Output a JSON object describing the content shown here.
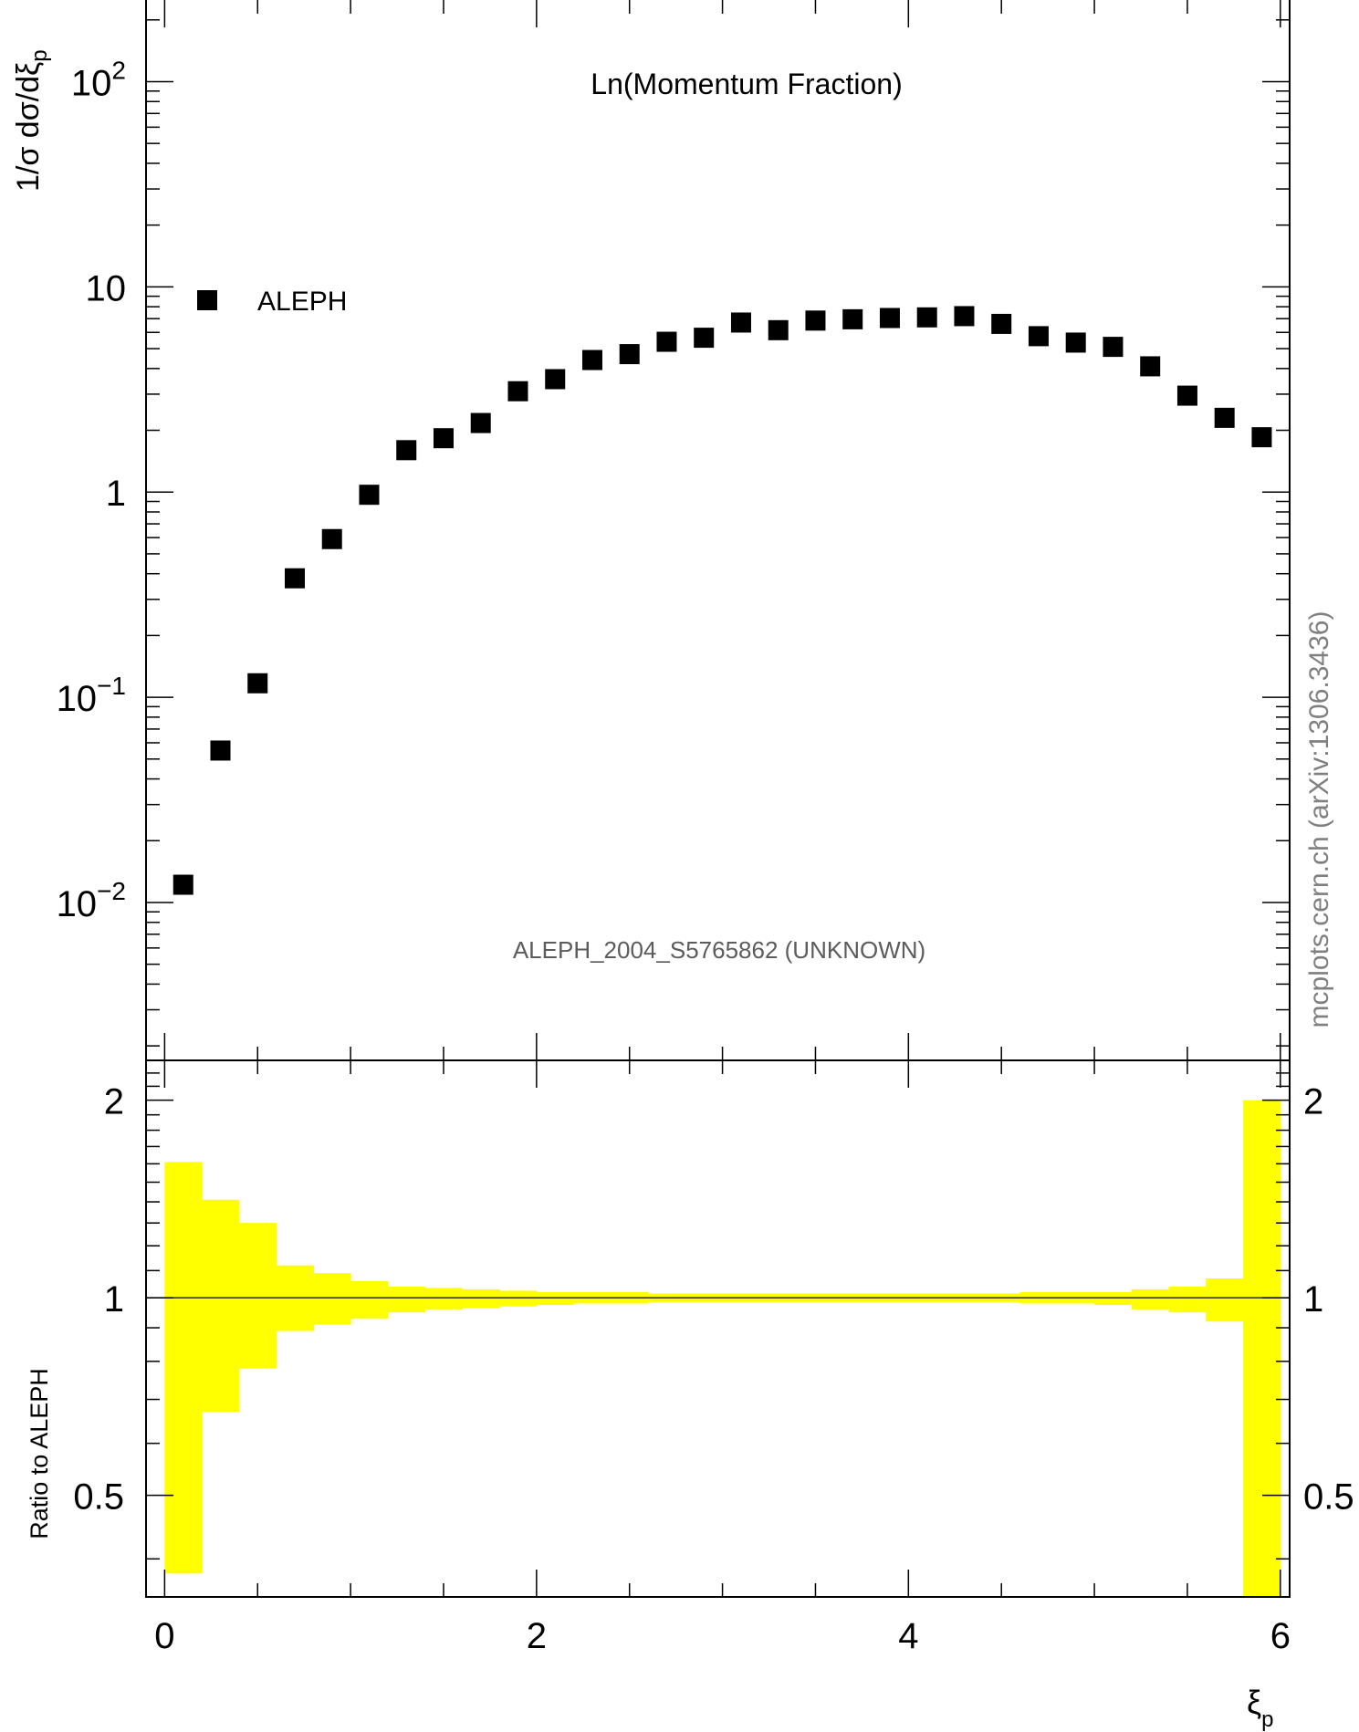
{
  "chart_data": [
    {
      "panel": "main",
      "type": "scatter",
      "title": "Ln(Momentum Fraction)",
      "subtitle": "ALEPH_2004_S5765862 (UNKNOWN)",
      "ylabel": "1/σ dσ/dξp",
      "ylabel_main": "1/σ dσ/dξ",
      "ylabel_sub": "p",
      "yscale": "log",
      "xlim": [
        -0.1,
        6.05
      ],
      "ylim": [
        0.0017,
        250
      ],
      "y_ticks": [
        {
          "value": 0.01,
          "base": "10",
          "exp": "−2"
        },
        {
          "value": 0.1,
          "base": "10",
          "exp": "−1"
        },
        {
          "value": 1,
          "base": "1",
          "exp": ""
        },
        {
          "value": 10,
          "base": "10",
          "exp": ""
        },
        {
          "value": 100,
          "base": "10",
          "exp": "2"
        }
      ],
      "legend": {
        "label": "ALEPH",
        "placement": "top-left"
      },
      "series": [
        {
          "name": "ALEPH",
          "color": "#000000",
          "marker": "square",
          "x": [
            0.1,
            0.3,
            0.5,
            0.7,
            0.9,
            1.1,
            1.3,
            1.5,
            1.7,
            1.9,
            2.1,
            2.3,
            2.5,
            2.7,
            2.9,
            3.1,
            3.3,
            3.5,
            3.7,
            3.9,
            4.1,
            4.3,
            4.5,
            4.7,
            4.9,
            5.1,
            5.3,
            5.5,
            5.7,
            5.9
          ],
          "y": [
            0.0122,
            0.055,
            0.117,
            0.38,
            0.59,
            0.97,
            1.6,
            1.83,
            2.17,
            3.1,
            3.55,
            4.4,
            4.7,
            5.4,
            5.65,
            6.7,
            6.15,
            6.85,
            6.95,
            7.05,
            7.1,
            7.2,
            6.6,
            5.75,
            5.35,
            5.1,
            4.1,
            2.95,
            2.3,
            1.85
          ]
        }
      ]
    },
    {
      "panel": "ratio",
      "type": "area",
      "ylabel": "Ratio to ALEPH",
      "xlabel": "ξp",
      "xlabel_main": "ξ",
      "xlabel_sub": "p",
      "xlim": [
        -0.1,
        6.05
      ],
      "ylim": [
        0.35,
        2.3
      ],
      "x_ticks": [
        0,
        2,
        4,
        6
      ],
      "y_ticks": [
        0.5,
        1,
        2
      ],
      "reference_line": 1,
      "band_color": "#ffff00",
      "band_bins": [
        0,
        0.2,
        0.4,
        0.6,
        0.8,
        1.0,
        1.2,
        1.4,
        1.6,
        1.8,
        2.0,
        2.2,
        2.4,
        2.6,
        2.8,
        3.0,
        3.2,
        3.4,
        3.6,
        3.8,
        4.0,
        4.2,
        4.4,
        4.6,
        4.8,
        5.0,
        5.2,
        5.4,
        5.6,
        5.8,
        6.0
      ],
      "band_upper": [
        1.61,
        1.41,
        1.3,
        1.12,
        1.09,
        1.06,
        1.04,
        1.035,
        1.03,
        1.025,
        1.02,
        1.02,
        1.02,
        1.015,
        1.015,
        1.015,
        1.015,
        1.015,
        1.015,
        1.015,
        1.015,
        1.015,
        1.015,
        1.02,
        1.02,
        1.02,
        1.03,
        1.04,
        1.07,
        2.0
      ],
      "band_lower": [
        0.38,
        0.67,
        0.78,
        0.89,
        0.91,
        0.93,
        0.95,
        0.96,
        0.965,
        0.97,
        0.975,
        0.98,
        0.98,
        0.985,
        0.985,
        0.985,
        0.985,
        0.985,
        0.985,
        0.985,
        0.985,
        0.985,
        0.985,
        0.98,
        0.98,
        0.975,
        0.96,
        0.95,
        0.92,
        0.33
      ]
    }
  ],
  "watermark": "mcplots.cern.ch (arXiv:1306.3436)"
}
